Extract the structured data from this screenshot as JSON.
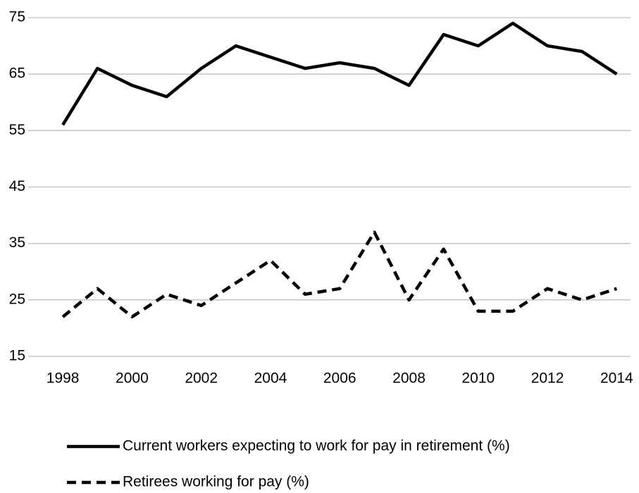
{
  "chart_data": {
    "type": "line",
    "x": [
      1998,
      1999,
      2000,
      2001,
      2002,
      2003,
      2004,
      2005,
      2006,
      2007,
      2008,
      2009,
      2010,
      2011,
      2012,
      2013,
      2014
    ],
    "series": [
      {
        "name": "Current workers expecting to work for pay in retirement (%)",
        "color": "#000000",
        "line_style": "solid",
        "values": [
          56,
          66,
          63,
          61,
          66,
          70,
          68,
          66,
          67,
          66,
          63,
          72,
          70,
          74,
          70,
          69,
          65
        ]
      },
      {
        "name": "Retirees working for pay (%)",
        "color": "#000000",
        "line_style": "dashed",
        "values": [
          22,
          27,
          22,
          26,
          24,
          28,
          32,
          26,
          27,
          37,
          25,
          34,
          23,
          23,
          27,
          25,
          27
        ]
      }
    ],
    "xlim": [
      1997,
      2014.4
    ],
    "xticks": [
      1998,
      2000,
      2002,
      2004,
      2006,
      2008,
      2010,
      2012,
      2014
    ],
    "ylim": [
      15,
      75
    ],
    "yticks": [
      15,
      25,
      35,
      45,
      55,
      65,
      75
    ],
    "grid": true,
    "legend": "bottom"
  }
}
